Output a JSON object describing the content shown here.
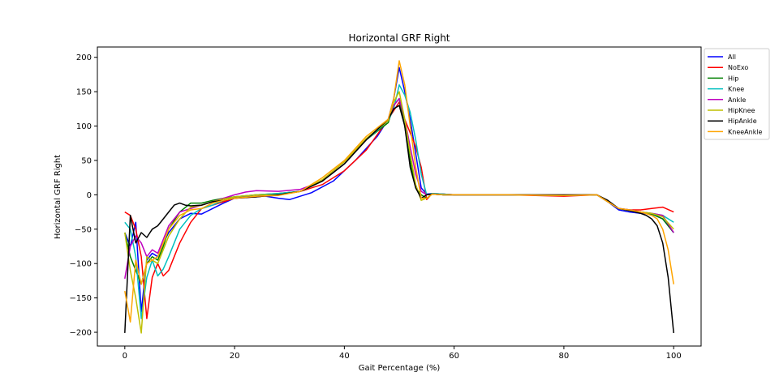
{
  "chart_data": {
    "type": "line",
    "title": "Horizontal GRF Right",
    "xlabel": "Gait Percentage (%)",
    "ylabel": "Horizontal GRF Right",
    "xlim": [
      -5,
      105
    ],
    "ylim": [
      -220,
      215
    ],
    "xticks": [
      0,
      20,
      40,
      60,
      80,
      100
    ],
    "yticks": [
      -200,
      -150,
      -100,
      -50,
      0,
      50,
      100,
      150,
      200
    ],
    "grid": false,
    "legend_position": "outside-top-right",
    "series": [
      {
        "name": "All",
        "color": "#0000ff",
        "x": [
          0,
          1,
          2,
          3,
          4,
          5,
          6,
          7,
          8,
          10,
          12,
          14,
          16,
          18,
          20,
          24,
          28,
          30,
          34,
          38,
          42,
          46,
          48,
          49,
          50,
          51,
          52,
          53,
          54,
          55,
          56,
          58,
          60,
          70,
          80,
          86,
          88,
          90,
          92,
          94,
          96,
          98,
          100
        ],
        "y": [
          -55,
          -75,
          -40,
          -170,
          -95,
          -85,
          -90,
          -70,
          -55,
          -35,
          -27,
          -28,
          -20,
          -12,
          -5,
          0,
          -5,
          -7,
          3,
          20,
          50,
          85,
          110,
          140,
          185,
          150,
          110,
          60,
          10,
          1,
          2,
          1,
          0,
          0,
          -1,
          0,
          -10,
          -22,
          -25,
          -27,
          -28,
          -35,
          -55
        ]
      },
      {
        "name": "NoExo",
        "color": "#ff0000",
        "x": [
          0,
          1,
          2,
          3,
          4,
          5,
          6,
          7,
          8,
          9,
          10,
          12,
          14,
          16,
          18,
          20,
          24,
          28,
          32,
          36,
          40,
          44,
          48,
          50,
          51,
          52,
          53,
          54,
          55,
          56,
          58,
          60,
          70,
          80,
          86,
          88,
          90,
          92,
          94,
          96,
          98,
          100
        ],
        "y": [
          -25,
          -30,
          -50,
          -90,
          -180,
          -120,
          -100,
          -118,
          -110,
          -90,
          -70,
          -40,
          -20,
          -15,
          -10,
          -5,
          -3,
          0,
          5,
          15,
          35,
          65,
          110,
          135,
          110,
          90,
          70,
          40,
          -7,
          2,
          1,
          0,
          0,
          -2,
          0,
          -10,
          -20,
          -22,
          -22,
          -20,
          -18,
          -25
        ]
      },
      {
        "name": "Hip",
        "color": "#008000",
        "x": [
          0,
          1,
          2,
          3,
          4,
          5,
          6,
          7,
          8,
          10,
          12,
          14,
          16,
          18,
          20,
          24,
          28,
          32,
          36,
          40,
          44,
          48,
          49,
          50,
          51,
          52,
          53,
          54,
          55,
          56,
          58,
          60,
          70,
          80,
          86,
          88,
          90,
          92,
          94,
          96,
          98,
          100
        ],
        "y": [
          -55,
          -90,
          -110,
          -130,
          -100,
          -90,
          -95,
          -75,
          -50,
          -25,
          -12,
          -12,
          -8,
          -5,
          -3,
          0,
          2,
          5,
          20,
          45,
          80,
          105,
          130,
          140,
          100,
          50,
          10,
          0,
          -5,
          1,
          0,
          0,
          0,
          -1,
          0,
          -10,
          -20,
          -23,
          -25,
          -28,
          -35,
          -55
        ]
      },
      {
        "name": "Knee",
        "color": "#00bfbf",
        "x": [
          0,
          1,
          2,
          3,
          4,
          5,
          6,
          7,
          8,
          9,
          10,
          12,
          14,
          16,
          18,
          20,
          24,
          28,
          32,
          36,
          40,
          44,
          48,
          49,
          50,
          51,
          52,
          53,
          54,
          55,
          56,
          58,
          60,
          70,
          80,
          86,
          88,
          90,
          92,
          94,
          96,
          98,
          100
        ],
        "y": [
          -40,
          -50,
          -90,
          -180,
          -120,
          -95,
          -118,
          -108,
          -90,
          -70,
          -50,
          -30,
          -20,
          -15,
          -8,
          -3,
          0,
          2,
          5,
          20,
          45,
          80,
          108,
          125,
          160,
          145,
          120,
          80,
          30,
          0,
          2,
          1,
          0,
          0,
          -1,
          0,
          -10,
          -20,
          -22,
          -25,
          -27,
          -30,
          -40
        ]
      },
      {
        "name": "Ankle",
        "color": "#bf00bf",
        "x": [
          0,
          1,
          2,
          3,
          4,
          5,
          6,
          7,
          8,
          10,
          12,
          14,
          16,
          18,
          20,
          22,
          24,
          28,
          32,
          36,
          40,
          44,
          48,
          49,
          50,
          51,
          52,
          53,
          54,
          55,
          56,
          58,
          60,
          70,
          80,
          86,
          88,
          90,
          92,
          94,
          96,
          98,
          100
        ],
        "y": [
          -122,
          -75,
          -60,
          -70,
          -90,
          -80,
          -85,
          -65,
          -45,
          -25,
          -20,
          -15,
          -10,
          -5,
          0,
          4,
          6,
          5,
          8,
          20,
          45,
          80,
          110,
          130,
          140,
          110,
          70,
          30,
          5,
          0,
          1,
          0,
          0,
          0,
          -1,
          0,
          -10,
          -20,
          -22,
          -25,
          -27,
          -30,
          -55
        ]
      },
      {
        "name": "HipKnee",
        "color": "#bfbf00",
        "x": [
          0,
          1,
          2,
          3,
          4,
          5,
          6,
          7,
          8,
          10,
          12,
          14,
          16,
          18,
          20,
          24,
          28,
          32,
          36,
          40,
          44,
          48,
          49,
          50,
          51,
          52,
          53,
          54,
          55,
          56,
          58,
          60,
          70,
          80,
          86,
          88,
          90,
          92,
          94,
          96,
          98,
          100
        ],
        "y": [
          -55,
          -110,
          -150,
          -201,
          -90,
          -95,
          -100,
          -80,
          -60,
          -35,
          -18,
          -15,
          -10,
          -6,
          -3,
          0,
          0,
          5,
          22,
          48,
          82,
          108,
          135,
          150,
          110,
          60,
          15,
          -8,
          -5,
          1,
          0,
          0,
          0,
          -1,
          0,
          -10,
          -20,
          -23,
          -25,
          -27,
          -32,
          -50
        ]
      },
      {
        "name": "HipAnkle",
        "color": "#000000",
        "x": [
          0,
          1,
          2,
          3,
          4,
          5,
          6,
          7,
          8,
          9,
          10,
          11,
          12,
          14,
          16,
          18,
          20,
          24,
          28,
          32,
          36,
          40,
          44,
          48,
          49,
          50,
          51,
          52,
          53,
          54,
          55,
          56,
          58,
          60,
          70,
          80,
          86,
          88,
          90,
          92,
          94,
          95,
          96,
          97,
          98,
          99,
          100
        ],
        "y": [
          -201,
          -30,
          -70,
          -55,
          -62,
          -50,
          -45,
          -35,
          -25,
          -15,
          -12,
          -15,
          -16,
          -15,
          -10,
          -8,
          -5,
          -3,
          0,
          5,
          20,
          45,
          80,
          110,
          125,
          130,
          100,
          40,
          10,
          -5,
          0,
          1,
          0,
          0,
          0,
          0,
          0,
          -8,
          -20,
          -23,
          -27,
          -30,
          -35,
          -45,
          -70,
          -120,
          -201
        ]
      },
      {
        "name": "KneeAnkle",
        "color": "#ffa500",
        "x": [
          0,
          1,
          2,
          3,
          4,
          5,
          6,
          7,
          8,
          10,
          12,
          14,
          16,
          18,
          20,
          24,
          28,
          32,
          36,
          40,
          44,
          48,
          49,
          50,
          51,
          52,
          53,
          54,
          55,
          56,
          58,
          60,
          70,
          80,
          86,
          88,
          90,
          92,
          94,
          96,
          97,
          98,
          99,
          100
        ],
        "y": [
          -140,
          -185,
          -95,
          -130,
          -100,
          -95,
          -90,
          -70,
          -50,
          -30,
          -22,
          -20,
          -12,
          -8,
          -5,
          -2,
          -1,
          5,
          25,
          50,
          85,
          110,
          140,
          195,
          160,
          100,
          40,
          -5,
          -5,
          1,
          0,
          0,
          0,
          -1,
          0,
          -10,
          -20,
          -22,
          -25,
          -30,
          -35,
          -50,
          -80,
          -130
        ]
      }
    ]
  }
}
